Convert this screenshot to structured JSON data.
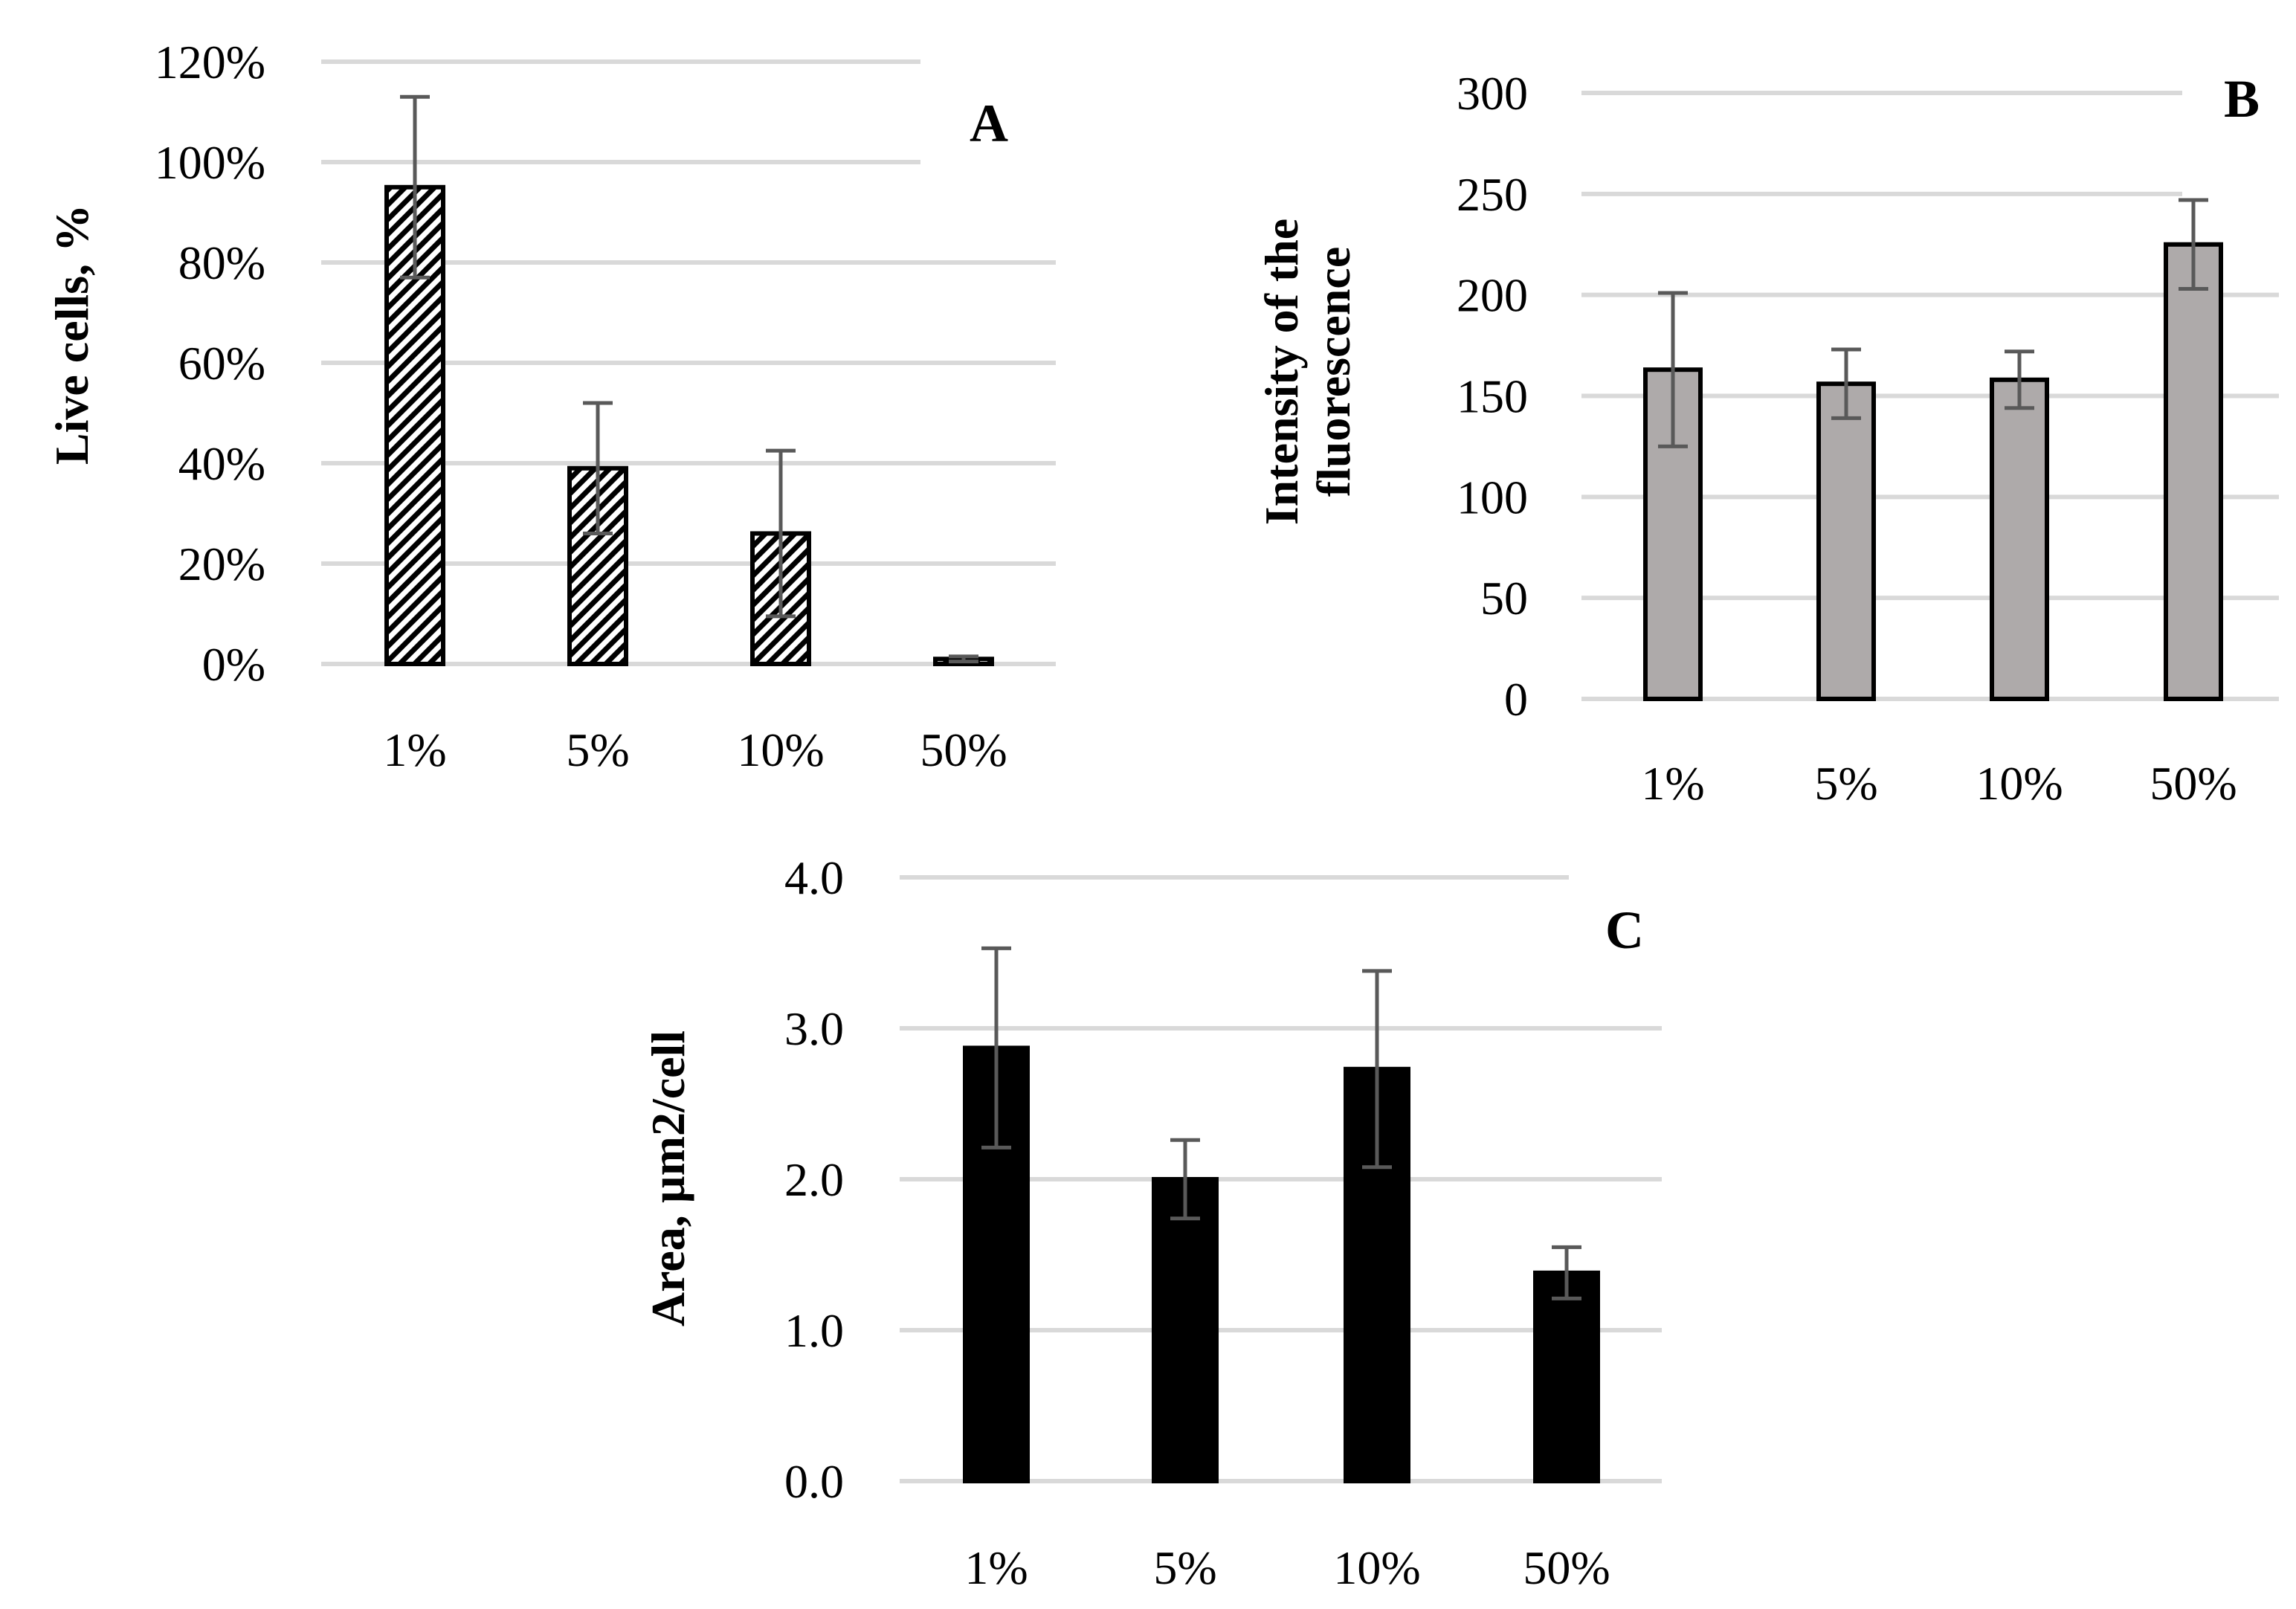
{
  "chart_data": [
    {
      "type": "bar",
      "panel": "A",
      "title": "",
      "xlabel": "",
      "ylabel": "Live cells, %",
      "categories": [
        "1%",
        "5%",
        "10%",
        "50%"
      ],
      "values": [
        95,
        39,
        26,
        1
      ],
      "error": [
        18,
        13,
        16.5,
        0.5
      ],
      "ylim": [
        0,
        120
      ],
      "yticks": [
        0,
        20,
        40,
        60,
        80,
        100,
        120
      ],
      "ytick_labels": [
        "0%",
        "20%",
        "40%",
        "60%",
        "80%",
        "100%",
        "120%"
      ],
      "grid": true,
      "legend": false,
      "style": {
        "fill": "hatched",
        "stroke": "#000000"
      }
    },
    {
      "type": "bar",
      "panel": "B",
      "title": "",
      "xlabel": "",
      "ylabel": [
        "Intensity of the",
        "fluorescence"
      ],
      "categories": [
        "1%",
        "5%",
        "10%",
        "50%"
      ],
      "values": [
        163,
        156,
        158,
        225
      ],
      "error": [
        38,
        17,
        14,
        22
      ],
      "ylim": [
        0,
        300
      ],
      "yticks": [
        0,
        50,
        100,
        150,
        200,
        250,
        300
      ],
      "ytick_labels": [
        "0",
        "50",
        "100",
        "150",
        "200",
        "250",
        "300"
      ],
      "grid": true,
      "legend": false,
      "style": {
        "fill": "#aeaaaa",
        "stroke": "#000000"
      }
    },
    {
      "type": "bar",
      "panel": "C",
      "title": "",
      "xlabel": "",
      "ylabel": "Area, µm2/cell",
      "categories": [
        "1%",
        "5%",
        "10%",
        "50%"
      ],
      "values": [
        2.87,
        2.0,
        2.73,
        1.38
      ],
      "error": [
        0.66,
        0.26,
        0.65,
        0.17
      ],
      "ylim": [
        0,
        4
      ],
      "yticks": [
        0,
        1,
        2,
        3,
        4
      ],
      "ytick_labels": [
        "0.0",
        "1.0",
        "2.0",
        "3.0",
        "4.0"
      ],
      "grid": true,
      "legend": false,
      "style": {
        "fill": "#000000",
        "stroke": "#000000"
      }
    }
  ]
}
